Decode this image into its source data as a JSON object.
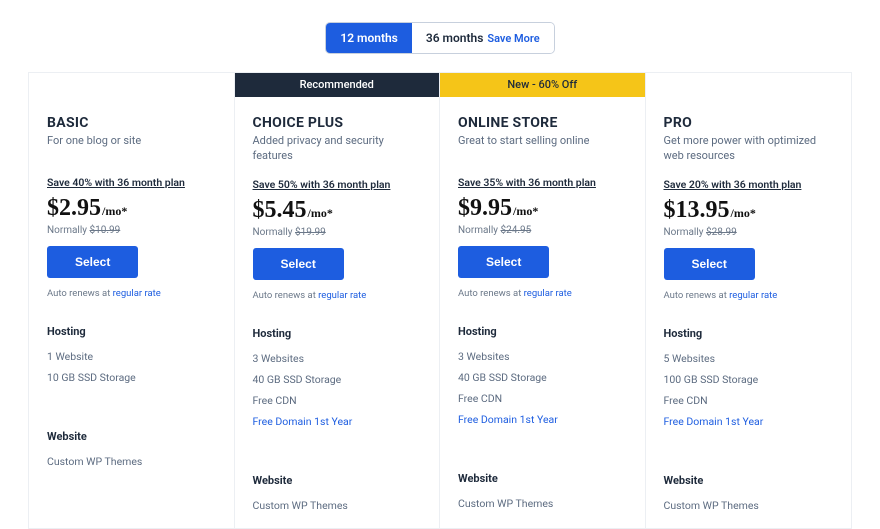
{
  "colors": {
    "primary": "#1d5de0",
    "dark": "#1e2a3b",
    "subtext": "#5c6b80",
    "muted": "#6b7889",
    "border": "#eceff3",
    "yellow": "#f5c518",
    "white": "#ffffff"
  },
  "toggle": {
    "option1": "12 months",
    "option2": "36 months",
    "option2_badge": "Save More",
    "active_index": 0
  },
  "auto_renews_prefix": "Auto renews at ",
  "auto_renews_link": "regular rate",
  "normally_prefix": "Normally ",
  "select_label": "Select",
  "section1_title": "Hosting",
  "section2_title": "Website",
  "plans": [
    {
      "name": "BASIC",
      "subtitle": "For one blog or site",
      "badge_type": "none",
      "badge_text": "",
      "save_line": "Save 40% with 36 month plan",
      "price": "$2.95",
      "per": "/mo*",
      "normal_price": "$10.99",
      "hosting": [
        "1 Website",
        "10 GB SSD Storage"
      ],
      "hosting_links": [
        false,
        false
      ],
      "website": [
        "Custom WP Themes"
      ]
    },
    {
      "name": "CHOICE PLUS",
      "subtitle": "Added privacy and security features",
      "badge_type": "recommended",
      "badge_text": "Recommended",
      "save_line": "Save 50% with 36 month plan",
      "price": "$5.45",
      "per": "/mo*",
      "normal_price": "$19.99",
      "hosting": [
        "3 Websites",
        "40 GB SSD Storage",
        "Free CDN",
        "Free Domain 1st Year"
      ],
      "hosting_links": [
        false,
        false,
        false,
        true
      ],
      "website": [
        "Custom WP Themes"
      ]
    },
    {
      "name": "ONLINE STORE",
      "subtitle": "Great to start selling online",
      "badge_type": "new-deal",
      "badge_text": "New - 60% Off",
      "save_line": "Save 35% with 36 month plan",
      "price": "$9.95",
      "per": "/mo*",
      "normal_price": "$24.95",
      "hosting": [
        "3 Websites",
        "40 GB SSD Storage",
        "Free CDN",
        "Free Domain 1st Year"
      ],
      "hosting_links": [
        false,
        false,
        false,
        true
      ],
      "website": [
        "Custom WP Themes"
      ]
    },
    {
      "name": "PRO",
      "subtitle": "Get more power with optimized web resources",
      "badge_type": "none",
      "badge_text": "",
      "save_line": "Save 20% with 36 month plan",
      "price": "$13.95",
      "per": "/mo*",
      "normal_price": "$28.99",
      "hosting": [
        "5 Websites",
        "100 GB SSD Storage",
        "Free CDN",
        "Free Domain 1st Year"
      ],
      "hosting_links": [
        false,
        false,
        false,
        true
      ],
      "website": [
        "Custom WP Themes"
      ]
    }
  ]
}
